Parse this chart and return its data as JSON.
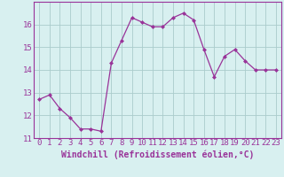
{
  "x": [
    0,
    1,
    2,
    3,
    4,
    5,
    6,
    7,
    8,
    9,
    10,
    11,
    12,
    13,
    14,
    15,
    16,
    17,
    18,
    19,
    20,
    21,
    22,
    23
  ],
  "y": [
    12.7,
    12.9,
    12.3,
    11.9,
    11.4,
    11.4,
    11.3,
    14.3,
    15.3,
    16.3,
    16.1,
    15.9,
    15.9,
    16.3,
    16.5,
    16.2,
    14.9,
    13.7,
    14.6,
    14.9,
    14.4,
    14.0,
    14.0,
    14.0
  ],
  "line_color": "#993399",
  "marker": "D",
  "marker_size": 2.0,
  "bg_color": "#d8f0f0",
  "grid_color": "#aacccc",
  "xlabel": "Windchill (Refroidissement éolien,°C)",
  "xlabel_fontsize": 7,
  "tick_fontsize": 6.5,
  "ylim": [
    11.0,
    17.0
  ],
  "yticks": [
    11,
    12,
    13,
    14,
    15,
    16
  ],
  "xticks": [
    0,
    1,
    2,
    3,
    4,
    5,
    6,
    7,
    8,
    9,
    10,
    11,
    12,
    13,
    14,
    15,
    16,
    17,
    18,
    19,
    20,
    21,
    22,
    23
  ],
  "xlim": [
    -0.5,
    23.5
  ]
}
